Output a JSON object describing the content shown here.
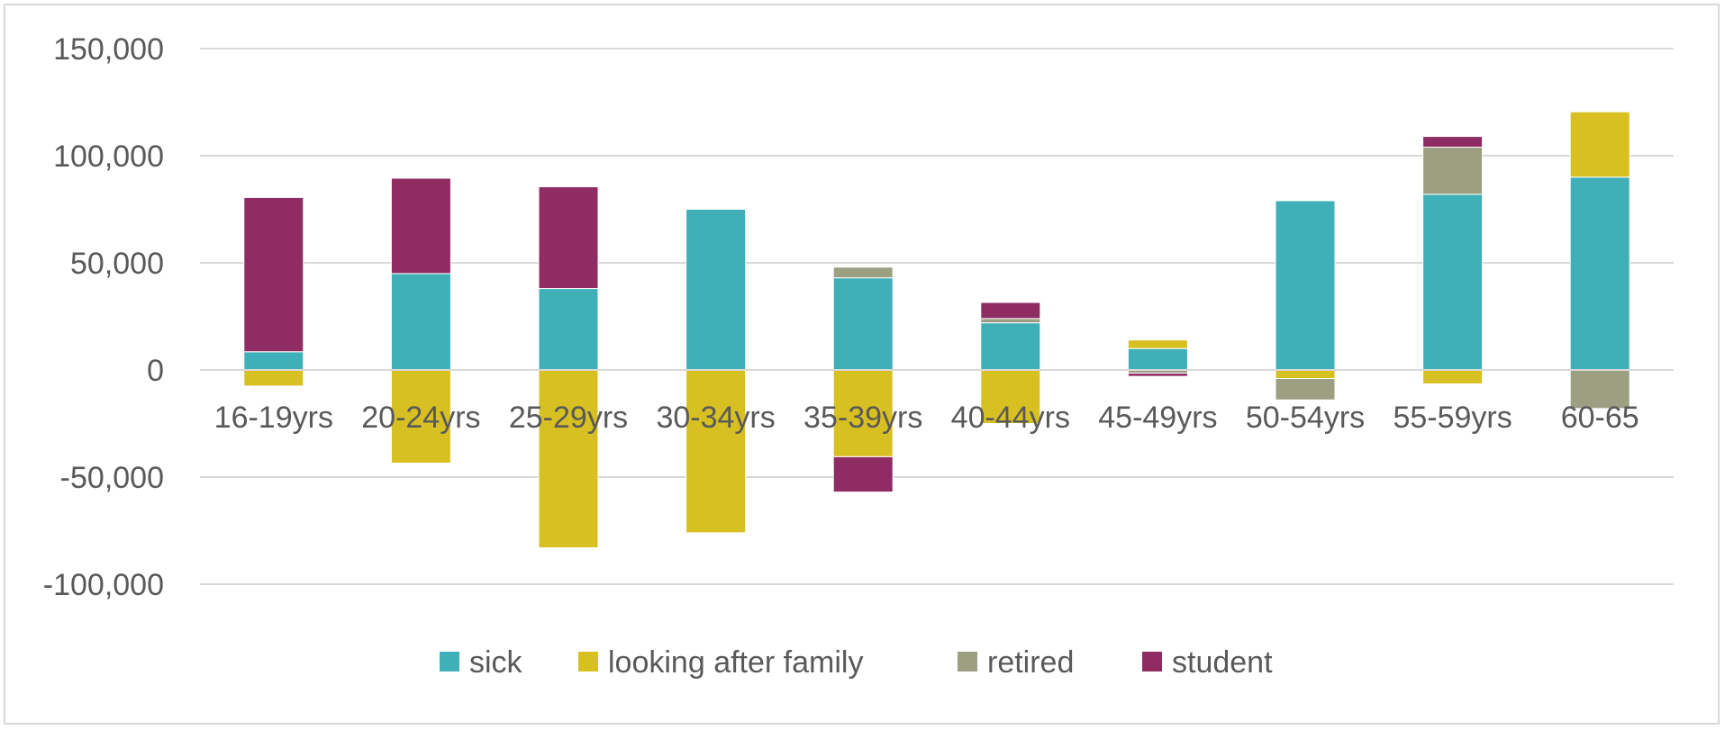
{
  "chart_data": {
    "type": "bar",
    "stacked": true,
    "categories": [
      "16-19yrs",
      "20-24yrs",
      "25-29yrs",
      "30-34yrs",
      "35-39yrs",
      "40-44yrs",
      "45-49yrs",
      "50-54yrs",
      "55-59yrs",
      "60-65"
    ],
    "series": [
      {
        "name": "sick",
        "color": "#3fafb8",
        "values": [
          8500,
          45000,
          38000,
          75000,
          43000,
          22000,
          10000,
          79000,
          82000,
          90000
        ]
      },
      {
        "name": "looking after family",
        "color": "#d8c023",
        "values": [
          -7500,
          -43500,
          -83000,
          -76000,
          -40500,
          -25000,
          4000,
          -4000,
          -6500,
          30500
        ]
      },
      {
        "name": "retired",
        "color": "#9c9f82",
        "values": [
          0,
          0,
          0,
          0,
          5000,
          2000,
          -1500,
          -10000,
          22000,
          -18000
        ]
      },
      {
        "name": "student",
        "color": "#8e2c63",
        "values": [
          72000,
          44500,
          47500,
          0,
          -16500,
          7500,
          -1500,
          0,
          5000,
          0
        ]
      }
    ],
    "ylim": [
      -100000,
      150000
    ],
    "yticks": [
      -100000,
      -50000,
      0,
      50000,
      100000,
      150000
    ],
    "ytick_labels": [
      "-100,000",
      "-50,000",
      "0",
      "50,000",
      "100,000",
      "150,000"
    ],
    "grid": true,
    "legend_position": "bottom",
    "title": "",
    "xlabel": "",
    "ylabel": ""
  }
}
